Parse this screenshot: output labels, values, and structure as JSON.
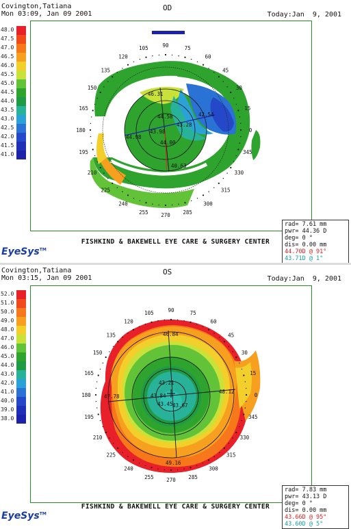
{
  "od": {
    "patient_name": "Covington,Tatiana",
    "exam_time": "Mon 03:09, Jan 09 2001",
    "today": "Today:Jan  9, 2001",
    "eye": "OD",
    "clinic": "FISHKIND & BAKEWELL EYE CARE & SURGERY CENTER",
    "logo": "EyeSys",
    "scale_labels": [
      "48.0",
      "47.5",
      "47.0",
      "46.5",
      "46.0",
      "45.5",
      "45.0",
      "44.5",
      "44.0",
      "43.5",
      "43.0",
      "42.5",
      "42.0",
      "41.5",
      "41.0"
    ],
    "scale_colors": [
      "#e8202a",
      "#f04a1a",
      "#f7781a",
      "#f7a020",
      "#f2cf2a",
      "#c8e23a",
      "#62c238",
      "#2ea32e",
      "#1f9a45",
      "#28b29a",
      "#2aa2d6",
      "#2a72d4",
      "#2448c8",
      "#1f2fb8",
      "#1c23a8"
    ],
    "axis_labels": [
      "0",
      "15",
      "30",
      "45",
      "60",
      "75",
      "90",
      "105",
      "120",
      "135",
      "150",
      "165",
      "180",
      "195",
      "210",
      "225",
      "240",
      "255",
      "270",
      "285",
      "300",
      "315",
      "330",
      "345"
    ],
    "map_values": [
      "46.31",
      "44.58",
      "43.98",
      "43.28",
      "44.98",
      "44.00",
      "42.54",
      "40.63"
    ],
    "info": {
      "rad": "rad=  7.61 mm",
      "pwr": "pwr= 44.36 D",
      "deg": "deg=     0 °",
      "dis": "dis=  0.00 mm",
      "k1": "44.70D @ 91°",
      "k2": "43.71D @ 1°"
    }
  },
  "os": {
    "patient_name": "Covington,Tatiana",
    "exam_time": "Mon 03:15, Jan 09 2001",
    "today": "Today:Jan  9, 2001",
    "eye": "OS",
    "clinic": "FISHKIND & BAKEWELL EYE CARE & SURGERY CENTER",
    "logo": "EyeSys",
    "scale_labels": [
      "52.0",
      "51.0",
      "50.0",
      "49.0",
      "48.0",
      "47.0",
      "46.0",
      "45.0",
      "44.0",
      "43.0",
      "42.0",
      "41.0",
      "40.0",
      "39.0",
      "38.0"
    ],
    "scale_colors": [
      "#e8202a",
      "#f04a1a",
      "#f7781a",
      "#f7a020",
      "#f2cf2a",
      "#c8e23a",
      "#62c238",
      "#2ea32e",
      "#1f9a45",
      "#28b29a",
      "#2aa2d6",
      "#2a72d4",
      "#2448c8",
      "#1f2fb8",
      "#1c23a8"
    ],
    "axis_labels": [
      "0",
      "15",
      "30",
      "45",
      "60",
      "75",
      "90",
      "105",
      "120",
      "135",
      "150",
      "165",
      "180",
      "195",
      "210",
      "225",
      "240",
      "255",
      "270",
      "285",
      "300",
      "315",
      "330",
      "345"
    ],
    "map_values": [
      "46.84",
      "43.21",
      "43.84",
      "43.67",
      "43.45",
      "47.78",
      "48.12",
      "49.16"
    ],
    "info": {
      "rad": "rad=  7.83 mm",
      "pwr": "pwr= 43.13 D",
      "deg": "deg=     0 °",
      "dis": "dis=  0.00 mm",
      "k1": "43.66D @ 95°",
      "k2": "43.60D @ 5°"
    }
  }
}
